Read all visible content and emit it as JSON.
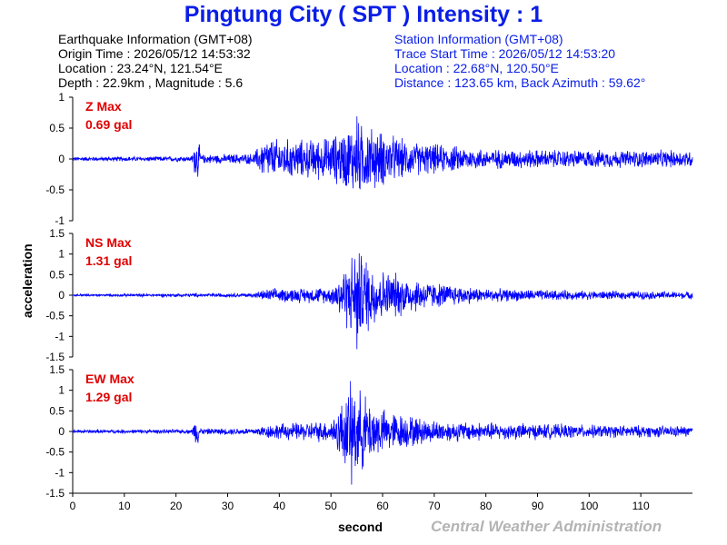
{
  "title": "Pingtung City ( SPT ) Intensity : 1",
  "earthquake_info": {
    "header": "Earthquake Information  (GMT+08)",
    "origin_time": "Origin Time : 2026/05/12 14:53:32",
    "location": "Location : 23.24°N, 121.54°E",
    "depth_magnitude": "Depth : 22.9km , Magnitude : 5.6"
  },
  "station_info": {
    "header": "Station Information  (GMT+08)",
    "trace_start": "Trace Start Time : 2026/05/12 14:53:20",
    "location": "Location : 22.68°N, 120.50°E",
    "distance": "Distance : 123.65 km, Back Azimuth : 59.62°"
  },
  "credit": "Central Weather Administration",
  "colors": {
    "title": "#0a1ee6",
    "trace": "#0000ff",
    "panel_label": "#e00000",
    "credit": "#b4b4b4"
  },
  "chart_data": {
    "type": "line",
    "xlabel": "second",
    "ylabel": "acceleration",
    "xlim": [
      0,
      120
    ],
    "xticks": [
      0,
      10,
      20,
      30,
      40,
      50,
      60,
      70,
      80,
      90,
      100,
      110
    ],
    "panels": [
      {
        "name": "Z",
        "label": "Z Max",
        "max_text": "0.69 gal",
        "peak": 0.69,
        "ylim": [
          -1,
          1
        ],
        "yticks": [
          1,
          0.5,
          0,
          -0.5,
          -1
        ],
        "envelope": [
          [
            0,
            0.04
          ],
          [
            23,
            0.05
          ],
          [
            24,
            0.45
          ],
          [
            25,
            0.08
          ],
          [
            35,
            0.1
          ],
          [
            37,
            0.38
          ],
          [
            45,
            0.35
          ],
          [
            50,
            0.4
          ],
          [
            55,
            0.69
          ],
          [
            60,
            0.5
          ],
          [
            65,
            0.32
          ],
          [
            80,
            0.18
          ],
          [
            100,
            0.16
          ],
          [
            120,
            0.16
          ]
        ]
      },
      {
        "name": "NS",
        "label": "NS Max",
        "max_text": "1.31 gal",
        "peak": 1.31,
        "ylim": [
          -1.5,
          1.5
        ],
        "yticks": [
          1.5,
          1,
          0.5,
          0,
          -0.5,
          -1,
          -1.5
        ],
        "envelope": [
          [
            0,
            0.03
          ],
          [
            35,
            0.06
          ],
          [
            38,
            0.18
          ],
          [
            50,
            0.22
          ],
          [
            53,
            0.9
          ],
          [
            55,
            1.31
          ],
          [
            60,
            0.7
          ],
          [
            70,
            0.35
          ],
          [
            80,
            0.18
          ],
          [
            100,
            0.12
          ],
          [
            120,
            0.1
          ]
        ]
      },
      {
        "name": "EW",
        "label": "EW Max",
        "max_text": "1.29 gal",
        "peak": 1.29,
        "ylim": [
          -1.5,
          1.5
        ],
        "yticks": [
          1.5,
          1,
          0.5,
          0,
          -0.5,
          -1,
          -1.5
        ],
        "envelope": [
          [
            0,
            0.05
          ],
          [
            23,
            0.06
          ],
          [
            24,
            0.42
          ],
          [
            25,
            0.08
          ],
          [
            35,
            0.1
          ],
          [
            38,
            0.2
          ],
          [
            50,
            0.3
          ],
          [
            54,
            1.29
          ],
          [
            60,
            0.6
          ],
          [
            70,
            0.3
          ],
          [
            80,
            0.25
          ],
          [
            100,
            0.18
          ],
          [
            120,
            0.15
          ]
        ]
      }
    ]
  }
}
